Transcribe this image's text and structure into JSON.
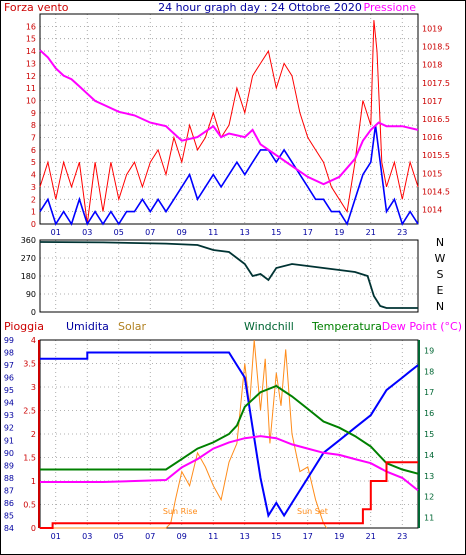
{
  "title": "24 hour graph day : 24 Ottobre 2020",
  "colors": {
    "wind": "#ff0000",
    "gust": "#ff0000",
    "avgwind": "#0000ff",
    "pressure": "#ff00ff",
    "direction": "#003333",
    "rain": "#ff0000",
    "humidity": "#0000ff",
    "solar": "#ff8c1a",
    "temp": "#008000",
    "dew": "#ff00ff",
    "windchill": "#006633",
    "axis_blue": "#0000a0",
    "axis_red": "#cc0000",
    "axis_green": "#006633"
  },
  "chart_data": [
    {
      "type": "line",
      "name": "wind-pressure",
      "left_label": "Forza vento",
      "right_label": "Pressione",
      "left_ylim": [
        0,
        17
      ],
      "left_ticks": [
        "0",
        "1",
        "2",
        "3",
        "4",
        "5",
        "6",
        "7",
        "8",
        "9",
        "10",
        "11",
        "12",
        "13",
        "14",
        "15",
        "16"
      ],
      "right_ylim": [
        1013.6,
        1019.4
      ],
      "right_ticks": [
        "1014",
        "1014.5",
        "1015",
        "1015.5",
        "1016",
        "1016.5",
        "1017",
        "1017.5",
        "1018",
        "1018.5",
        "1019"
      ],
      "x_ticks": [
        "01",
        "03",
        "05",
        "07",
        "09",
        "11",
        "13",
        "15",
        "17",
        "19",
        "21",
        "23"
      ],
      "pressure": [
        [
          0,
          1018.4
        ],
        [
          0.5,
          1018.2
        ],
        [
          1,
          1017.9
        ],
        [
          1.5,
          1017.7
        ],
        [
          2,
          1017.6
        ],
        [
          2.5,
          1017.4
        ],
        [
          3,
          1017.2
        ],
        [
          3.5,
          1017.0
        ],
        [
          4,
          1016.9
        ],
        [
          5,
          1016.7
        ],
        [
          6,
          1016.6
        ],
        [
          7,
          1016.4
        ],
        [
          8,
          1016.3
        ],
        [
          8.5,
          1016.1
        ],
        [
          9,
          1015.9
        ],
        [
          10,
          1016.0
        ],
        [
          11,
          1016.3
        ],
        [
          11.5,
          1016.0
        ],
        [
          12,
          1016.1
        ],
        [
          13,
          1016.0
        ],
        [
          13.5,
          1016.2
        ],
        [
          14,
          1015.8
        ],
        [
          15,
          1015.5
        ],
        [
          16,
          1015.2
        ],
        [
          17,
          1014.9
        ],
        [
          18,
          1014.7
        ],
        [
          19,
          1014.9
        ],
        [
          20,
          1015.4
        ],
        [
          20.5,
          1015.9
        ],
        [
          21,
          1016.2
        ],
        [
          21.5,
          1016.4
        ],
        [
          22,
          1016.3
        ],
        [
          23,
          1016.3
        ],
        [
          24,
          1016.2
        ]
      ],
      "wind_gust": [
        [
          0,
          3
        ],
        [
          0.5,
          5
        ],
        [
          1,
          2
        ],
        [
          1.5,
          5
        ],
        [
          2,
          3
        ],
        [
          2.5,
          5
        ],
        [
          3,
          0
        ],
        [
          3.5,
          5
        ],
        [
          4,
          1
        ],
        [
          4.5,
          5
        ],
        [
          5,
          2
        ],
        [
          5.5,
          4
        ],
        [
          6,
          5
        ],
        [
          6.5,
          3
        ],
        [
          7,
          5
        ],
        [
          7.5,
          6
        ],
        [
          8,
          4
        ],
        [
          8.5,
          7
        ],
        [
          9,
          5
        ],
        [
          9.5,
          8
        ],
        [
          10,
          6
        ],
        [
          10.5,
          7
        ],
        [
          11,
          9
        ],
        [
          11.5,
          7
        ],
        [
          12,
          8
        ],
        [
          12.5,
          11
        ],
        [
          13,
          9
        ],
        [
          13.5,
          12
        ],
        [
          14,
          13
        ],
        [
          14.5,
          14
        ],
        [
          15,
          11
        ],
        [
          15.5,
          13
        ],
        [
          16,
          12
        ],
        [
          16.5,
          9
        ],
        [
          17,
          7
        ],
        [
          17.5,
          6
        ],
        [
          18,
          5
        ],
        [
          18.5,
          3
        ],
        [
          19,
          2
        ],
        [
          19.5,
          1
        ],
        [
          20,
          5
        ],
        [
          20.5,
          10
        ],
        [
          21,
          8
        ],
        [
          21.2,
          16.5
        ],
        [
          21.4,
          14
        ],
        [
          21.7,
          5
        ],
        [
          22,
          3
        ],
        [
          22.5,
          5
        ],
        [
          23,
          2
        ],
        [
          23.5,
          5
        ],
        [
          24,
          3
        ]
      ],
      "wind_avg": [
        [
          0,
          1
        ],
        [
          0.5,
          2
        ],
        [
          1,
          0
        ],
        [
          1.5,
          1
        ],
        [
          2,
          0
        ],
        [
          2.5,
          2
        ],
        [
          3,
          0
        ],
        [
          3.5,
          1
        ],
        [
          4,
          0
        ],
        [
          4.5,
          1
        ],
        [
          5,
          0
        ],
        [
          5.5,
          1
        ],
        [
          6,
          1
        ],
        [
          6.5,
          2
        ],
        [
          7,
          1
        ],
        [
          7.5,
          2
        ],
        [
          8,
          1
        ],
        [
          8.5,
          2
        ],
        [
          9,
          3
        ],
        [
          9.5,
          4
        ],
        [
          10,
          2
        ],
        [
          10.5,
          3
        ],
        [
          11,
          4
        ],
        [
          11.5,
          3
        ],
        [
          12,
          4
        ],
        [
          12.5,
          5
        ],
        [
          13,
          4
        ],
        [
          13.5,
          5
        ],
        [
          14,
          6
        ],
        [
          14.5,
          6
        ],
        [
          15,
          5
        ],
        [
          15.5,
          6
        ],
        [
          16,
          5
        ],
        [
          16.5,
          4
        ],
        [
          17,
          3
        ],
        [
          17.5,
          2
        ],
        [
          18,
          2
        ],
        [
          18.5,
          1
        ],
        [
          19,
          1
        ],
        [
          19.5,
          0
        ],
        [
          20,
          2
        ],
        [
          20.5,
          4
        ],
        [
          21,
          5
        ],
        [
          21.3,
          8
        ],
        [
          21.6,
          5
        ],
        [
          22,
          1
        ],
        [
          22.5,
          2
        ],
        [
          23,
          0
        ],
        [
          23.5,
          1
        ],
        [
          24,
          0
        ]
      ]
    },
    {
      "type": "line",
      "name": "wind-direction",
      "left_ylim": [
        0,
        360
      ],
      "left_ticks": [
        "0",
        "90",
        "180",
        "270",
        "360"
      ],
      "right_labels": [
        "N",
        "W",
        "S",
        "E",
        "N"
      ],
      "direction": [
        [
          0,
          350
        ],
        [
          4,
          348
        ],
        [
          8,
          342
        ],
        [
          10,
          335
        ],
        [
          11,
          310
        ],
        [
          12,
          300
        ],
        [
          12.5,
          270
        ],
        [
          13,
          240
        ],
        [
          13.5,
          180
        ],
        [
          14,
          190
        ],
        [
          14.5,
          160
        ],
        [
          15,
          220
        ],
        [
          16,
          240
        ],
        [
          17,
          230
        ],
        [
          18,
          220
        ],
        [
          19,
          210
        ],
        [
          20,
          200
        ],
        [
          20.8,
          180
        ],
        [
          21.2,
          80
        ],
        [
          21.6,
          30
        ],
        [
          22,
          20
        ],
        [
          24,
          20
        ]
      ]
    },
    {
      "type": "line",
      "name": "rain-humidity-temp",
      "labels": [
        "Pioggia",
        "Umidita",
        "Solar",
        "Windchill",
        "Temperatura",
        "Dew Point (°C)"
      ],
      "rain_ylim": [
        0,
        4
      ],
      "rain_ticks": [
        "0",
        "0.5",
        "1",
        "1.5",
        "2",
        "2.5",
        "3",
        "3.5",
        "4"
      ],
      "hum_ylim": [
        84,
        99
      ],
      "hum_ticks": [
        "84",
        "85",
        "86",
        "87",
        "88",
        "89",
        "90",
        "91",
        "92",
        "93",
        "94",
        "95",
        "96",
        "97",
        "98",
        "99"
      ],
      "temp_ylim": [
        10.5,
        19.5
      ],
      "temp_ticks": [
        "11",
        "12",
        "13",
        "14",
        "15",
        "16",
        "17",
        "18",
        "19"
      ],
      "x_ticks": [
        "01",
        "03",
        "05",
        "07",
        "09",
        "11",
        "13",
        "15",
        "17",
        "19",
        "21",
        "23"
      ],
      "annotations": [
        "Sun Rise",
        "Sun Set"
      ],
      "rain": [
        [
          0,
          0.0
        ],
        [
          0.8,
          0.0
        ],
        [
          0.8,
          0.1
        ],
        [
          20.5,
          0.1
        ],
        [
          20.5,
          0.4
        ],
        [
          21,
          0.4
        ],
        [
          21,
          1.0
        ],
        [
          22,
          1.0
        ],
        [
          22,
          1.4
        ],
        [
          24,
          1.4
        ]
      ],
      "humidity": [
        [
          0,
          97.5
        ],
        [
          3,
          97.5
        ],
        [
          3,
          98
        ],
        [
          12,
          98
        ],
        [
          12.5,
          97
        ],
        [
          13,
          96
        ],
        [
          13.5,
          92
        ],
        [
          14,
          88
        ],
        [
          14.5,
          85
        ],
        [
          15,
          86
        ],
        [
          15.5,
          85
        ],
        [
          16,
          86
        ],
        [
          17,
          88
        ],
        [
          18,
          90
        ],
        [
          19,
          91
        ],
        [
          20,
          92
        ],
        [
          21,
          93
        ],
        [
          21.5,
          94
        ],
        [
          22,
          95
        ],
        [
          23,
          96
        ],
        [
          23.5,
          96.5
        ],
        [
          24,
          97
        ]
      ],
      "solar": [
        [
          0,
          0
        ],
        [
          8,
          0
        ],
        [
          8.3,
          0.1
        ],
        [
          8.6,
          0.6
        ],
        [
          9,
          1.2
        ],
        [
          9.5,
          0.9
        ],
        [
          10,
          1.6
        ],
        [
          10.5,
          1.3
        ],
        [
          11,
          0.9
        ],
        [
          11.5,
          0.6
        ],
        [
          12,
          1.4
        ],
        [
          12.5,
          1.8
        ],
        [
          13,
          3.5
        ],
        [
          13.3,
          2.6
        ],
        [
          13.6,
          4.0
        ],
        [
          14,
          2.5
        ],
        [
          14.3,
          3.6
        ],
        [
          14.6,
          1.8
        ],
        [
          15,
          3.3
        ],
        [
          15.3,
          2.6
        ],
        [
          15.6,
          3.8
        ],
        [
          16,
          2.0
        ],
        [
          16.5,
          1.2
        ],
        [
          17,
          1.3
        ],
        [
          17.5,
          0.6
        ],
        [
          18,
          0.1
        ],
        [
          18.2,
          0
        ]
      ],
      "temperature": [
        [
          0,
          13.3
        ],
        [
          4,
          13.3
        ],
        [
          8,
          13.3
        ],
        [
          9,
          13.8
        ],
        [
          10,
          14.3
        ],
        [
          11,
          14.6
        ],
        [
          12,
          15.0
        ],
        [
          12.5,
          15.4
        ],
        [
          13,
          16.3
        ],
        [
          14,
          17.0
        ],
        [
          15,
          17.3
        ],
        [
          16,
          16.8
        ],
        [
          17,
          16.2
        ],
        [
          18,
          15.6
        ],
        [
          19,
          15.3
        ],
        [
          20,
          14.9
        ],
        [
          21,
          14.4
        ],
        [
          22,
          13.6
        ],
        [
          23,
          13.3
        ],
        [
          24,
          13.1
        ]
      ],
      "dew_point": [
        [
          0,
          12.7
        ],
        [
          4,
          12.7
        ],
        [
          8,
          12.8
        ],
        [
          9,
          13.4
        ],
        [
          10,
          13.8
        ],
        [
          11,
          14.3
        ],
        [
          12,
          14.6
        ],
        [
          13,
          14.8
        ],
        [
          14,
          14.9
        ],
        [
          15,
          14.8
        ],
        [
          16,
          14.5
        ],
        [
          17,
          14.3
        ],
        [
          18,
          14.1
        ],
        [
          19,
          14.0
        ],
        [
          20,
          13.8
        ],
        [
          21,
          13.6
        ],
        [
          22,
          13.2
        ],
        [
          23,
          12.9
        ],
        [
          24,
          12.3
        ]
      ]
    }
  ]
}
